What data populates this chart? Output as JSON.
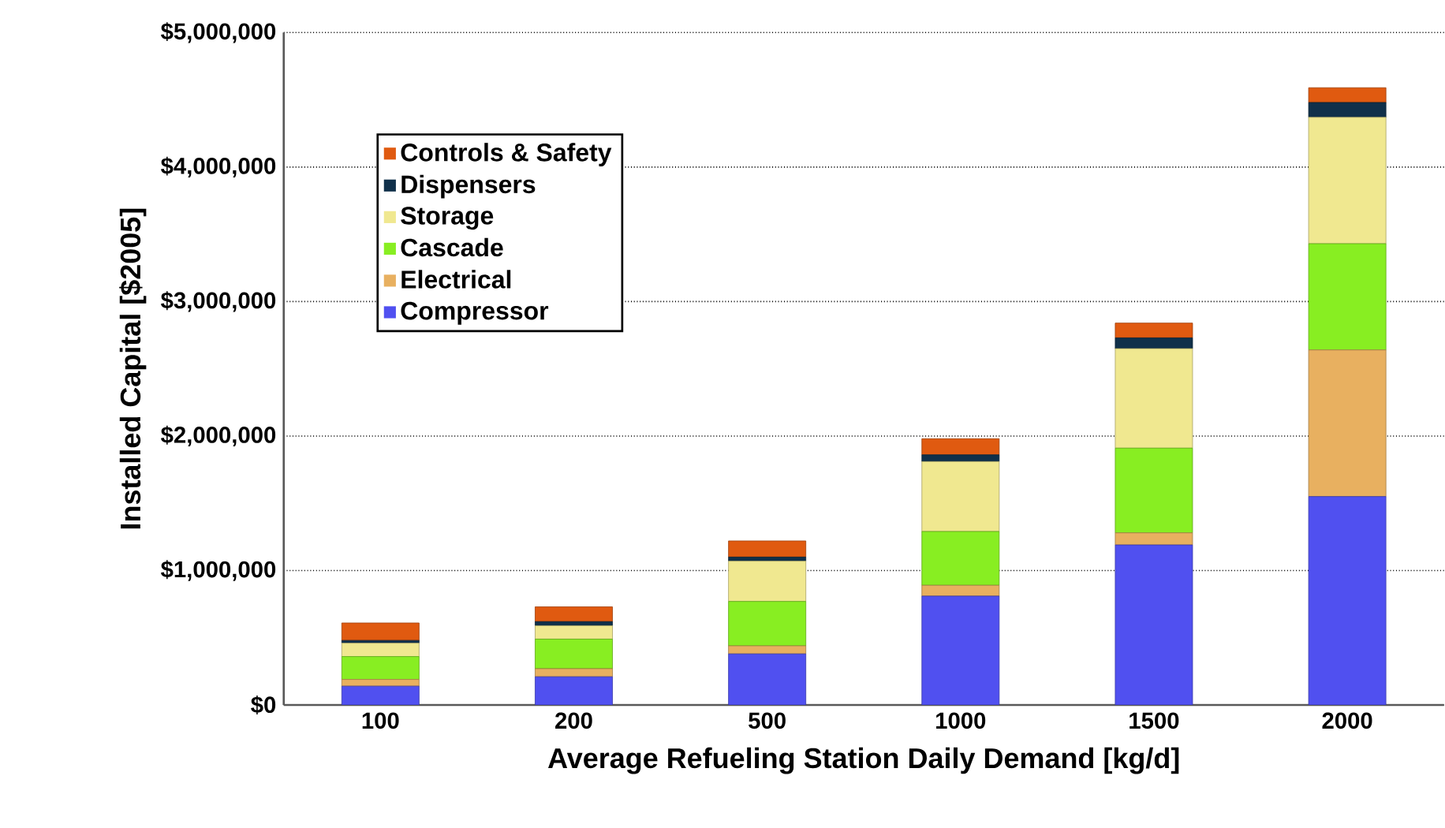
{
  "chart_data": {
    "type": "bar",
    "stacked": true,
    "xlabel": "Average Refueling Station Daily Demand [kg/d]",
    "ylabel": "Installed Capital [$2005]",
    "categories": [
      "100",
      "200",
      "500",
      "1000",
      "1500",
      "2000"
    ],
    "series": [
      {
        "name": "Compressor",
        "color": "#5050f0",
        "values": [
          140000,
          210000,
          380000,
          810000,
          1190000,
          1550000
        ]
      },
      {
        "name": "Electrical",
        "color": "#e8b060",
        "values": [
          50000,
          60000,
          60000,
          80000,
          90000,
          1090000
        ]
      },
      {
        "name": "Cascade",
        "color": "#88ee22",
        "values": [
          170000,
          220000,
          330000,
          400000,
          630000,
          790000
        ]
      },
      {
        "name": "Storage",
        "color": "#f0e890",
        "values": [
          100000,
          100000,
          300000,
          520000,
          740000,
          940000
        ]
      },
      {
        "name": "Dispensers",
        "color": "#10304a",
        "values": [
          20000,
          30000,
          30000,
          50000,
          80000,
          110000
        ]
      },
      {
        "name": "Controls & Safety",
        "color": "#e05a10",
        "values": [
          130000,
          110000,
          120000,
          120000,
          110000,
          110000
        ]
      }
    ],
    "ylim": [
      0,
      5000000
    ],
    "yticks": [
      {
        "value": 0,
        "label": "$0"
      },
      {
        "value": 1000000,
        "label": "$1,000,000"
      },
      {
        "value": 2000000,
        "label": "$2,000,000"
      },
      {
        "value": 3000000,
        "label": "$3,000,000"
      },
      {
        "value": 4000000,
        "label": "$4,000,000"
      },
      {
        "value": 5000000,
        "label": "$5,000,000"
      }
    ],
    "grid": "y",
    "legend": "top left"
  }
}
